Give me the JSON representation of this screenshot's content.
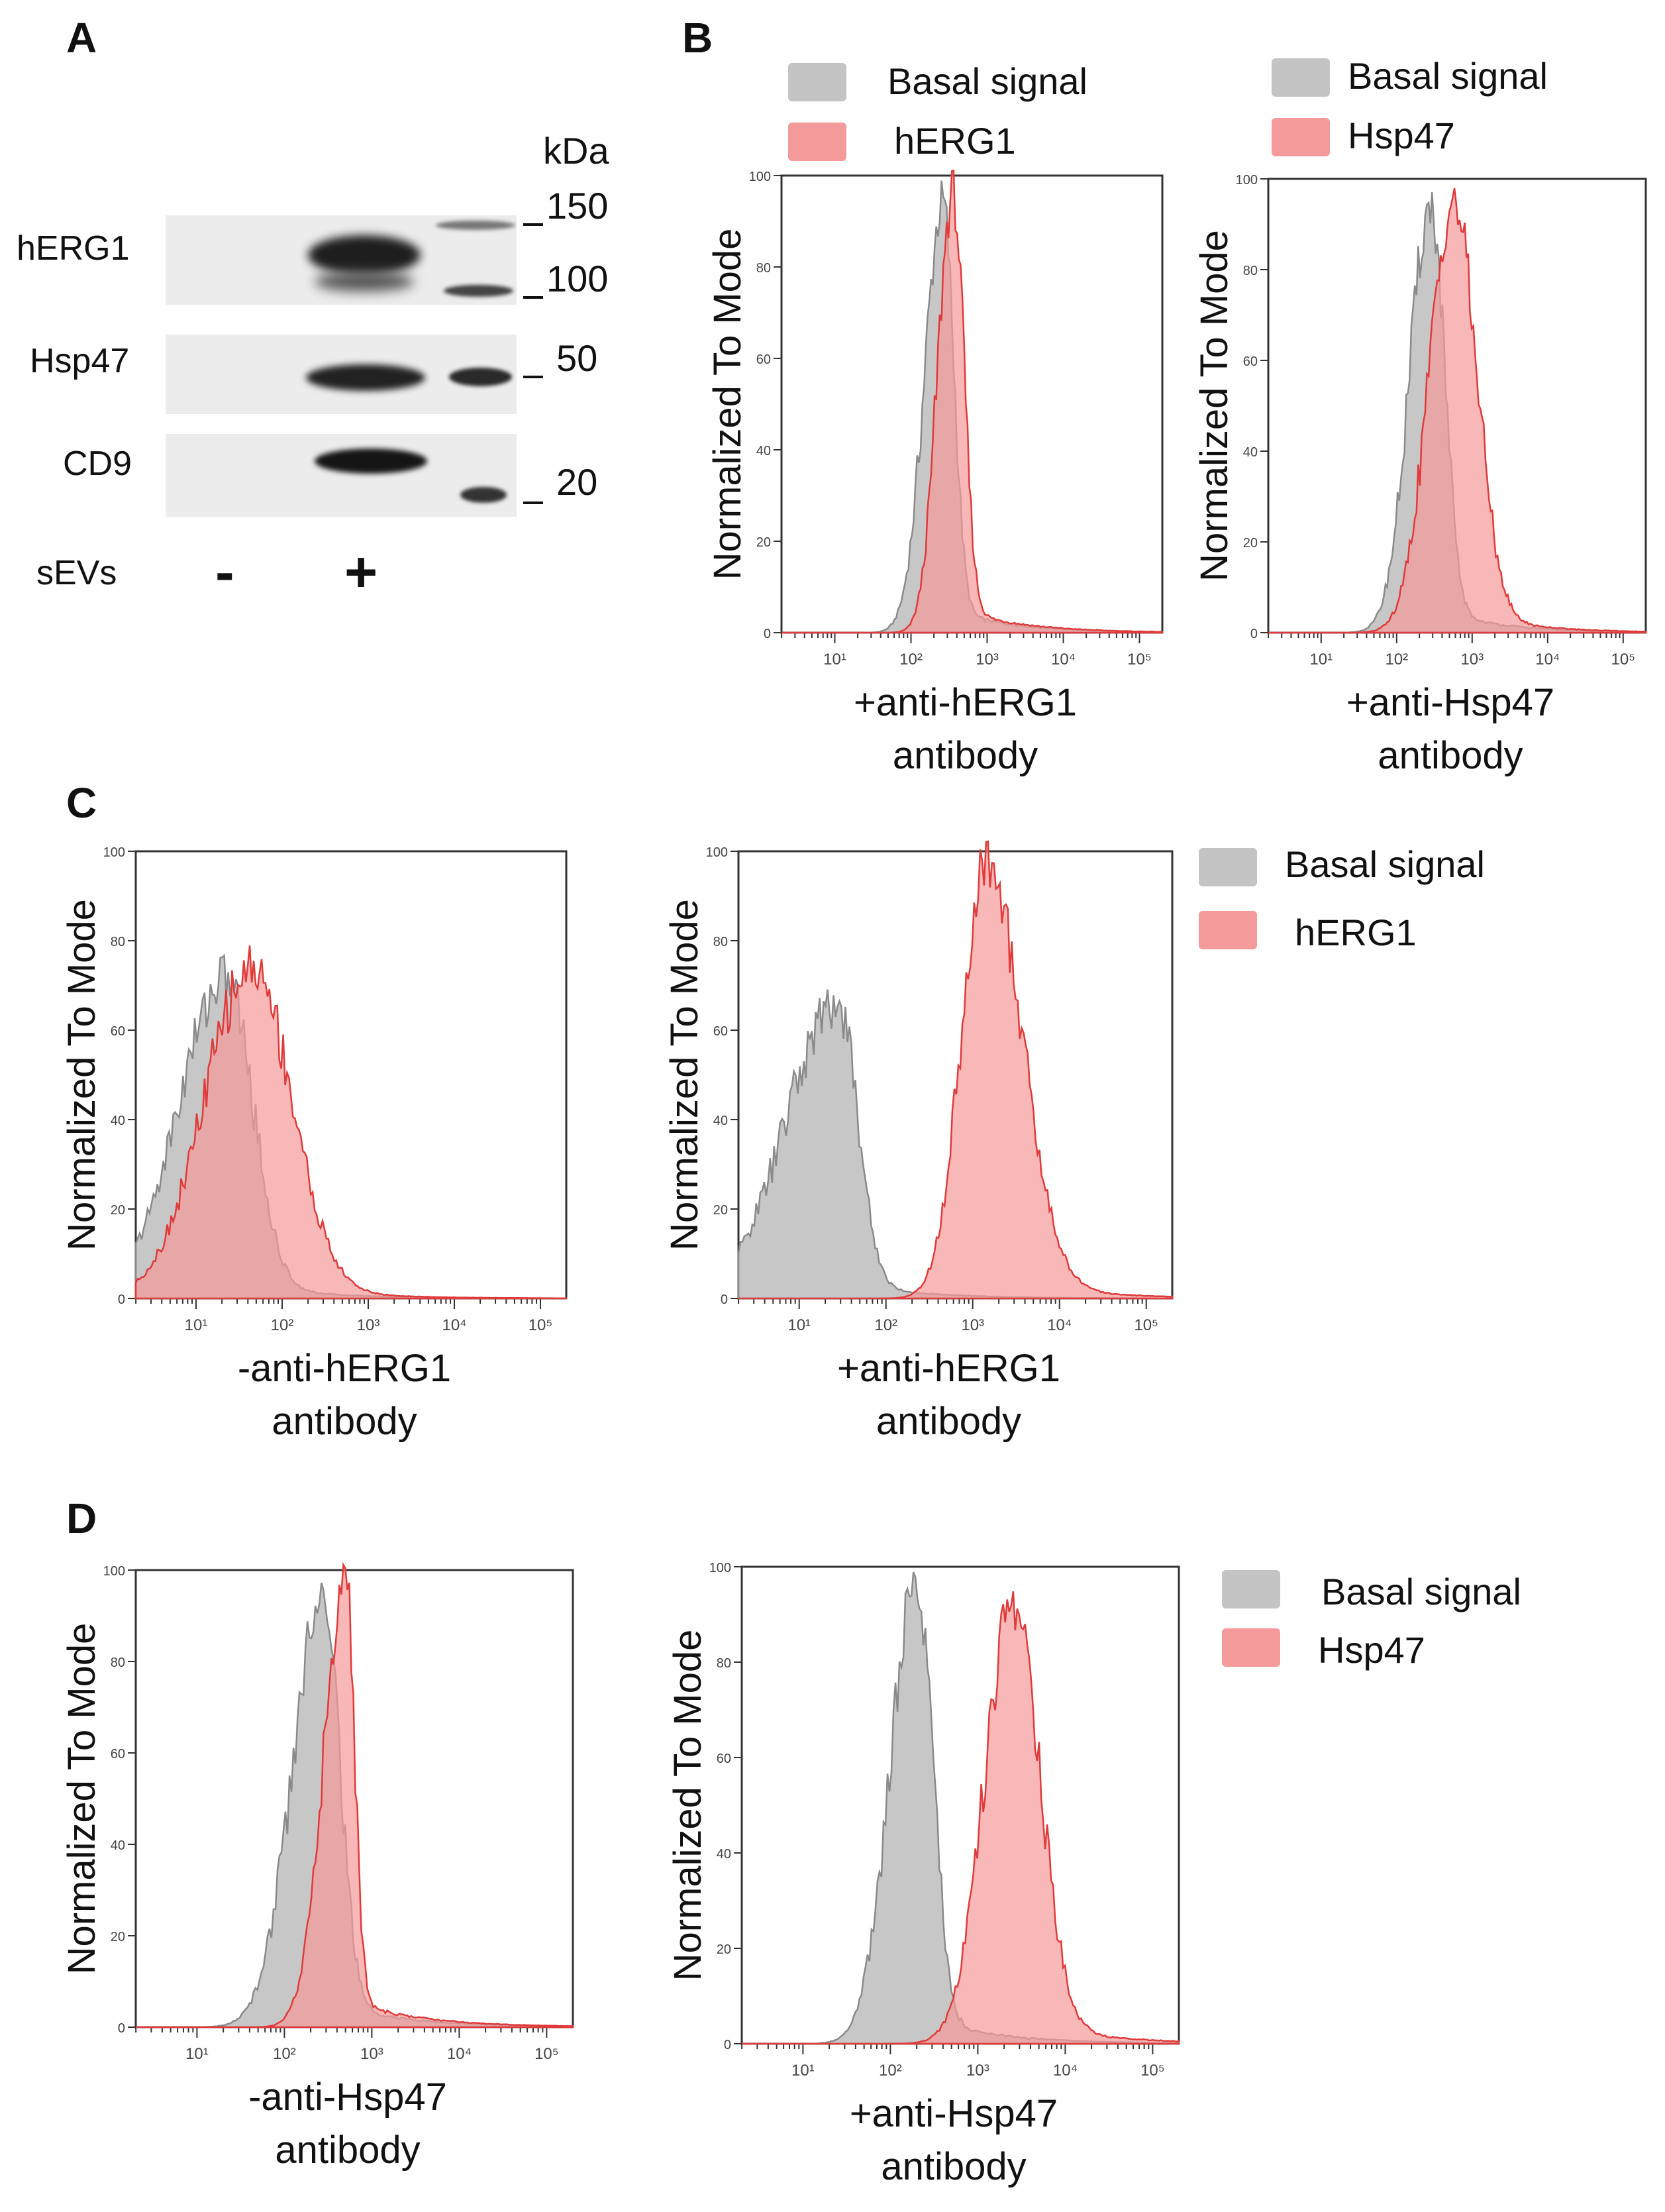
{
  "panel_labels": {
    "A": "A",
    "B": "B",
    "C": "C",
    "D": "D"
  },
  "western_blot": {
    "unit": "kDa",
    "rows": [
      "hERG1",
      "Hsp47",
      "CD9"
    ],
    "markers": [
      "150",
      "100",
      "50",
      "20"
    ],
    "lane_row_label": "sEVs",
    "lanes": [
      "-",
      "+"
    ]
  },
  "legends": {
    "b_left": {
      "basal": "Basal signal",
      "target": "hERG1"
    },
    "b_right": {
      "basal": "Basal signal",
      "target": "Hsp47"
    },
    "c": {
      "basal": "Basal signal",
      "target": "hERG1"
    },
    "d": {
      "basal": "Basal signal",
      "target": "Hsp47"
    }
  },
  "colors": {
    "basal_fill": "#bdbdbd",
    "basal_line": "#8a8a8a",
    "target_fill": "#f59a9a",
    "target_line": "#e03a3a",
    "axis": "#333333"
  },
  "chart_data": [
    {
      "id": "B1",
      "type": "area",
      "ylabel": "Normalized To Mode",
      "xlabel": [
        "+anti-hERG1",
        "antibody"
      ],
      "xscale": "log",
      "xlim_log10": [
        0.3,
        5.3
      ],
      "ylim": [
        0,
        100
      ],
      "yticks": [
        "0",
        "20",
        "40",
        "60",
        "80",
        "100"
      ],
      "xticks": [
        "10¹",
        "10²",
        "10³",
        "10⁴",
        "10⁵"
      ],
      "series": [
        {
          "name": "Basal signal",
          "peak_log10": 2.42,
          "peak": 94,
          "left_width": 0.24,
          "right_width": 0.14
        },
        {
          "name": "hERG1",
          "peak_log10": 2.55,
          "peak": 96,
          "left_width": 0.2,
          "right_width": 0.14
        }
      ]
    },
    {
      "id": "B2",
      "type": "area",
      "ylabel": "Normalized To Mode",
      "xlabel": [
        "+anti-Hsp47",
        "antibody"
      ],
      "xscale": "log",
      "xlim_log10": [
        0.3,
        5.3
      ],
      "ylim": [
        0,
        100
      ],
      "yticks": [
        "0",
        "20",
        "40",
        "60",
        "80",
        "100"
      ],
      "xticks": [
        "10¹",
        "10²",
        "10³",
        "10⁴",
        "10⁵"
      ],
      "series": [
        {
          "name": "Basal signal",
          "peak_log10": 2.45,
          "peak": 94,
          "left_width": 0.28,
          "right_width": 0.18
        },
        {
          "name": "Hsp47",
          "peak_log10": 2.75,
          "peak": 95,
          "left_width": 0.32,
          "right_width": 0.3
        }
      ]
    },
    {
      "id": "C1",
      "type": "area",
      "ylabel": "Normalized To Mode",
      "xlabel": [
        "-anti-hERG1",
        "antibody"
      ],
      "xscale": "log",
      "xlim_log10": [
        0.3,
        5.3
      ],
      "ylim": [
        0,
        100
      ],
      "yticks": [
        "0",
        "20",
        "40",
        "60",
        "80",
        "100"
      ],
      "xticks": [
        "10¹",
        "10²",
        "10³",
        "10⁴",
        "10⁵"
      ],
      "series": [
        {
          "name": "Basal signal",
          "peak_log10": 1.35,
          "peak": 72,
          "left_width": 0.55,
          "right_width": 0.3
        },
        {
          "name": "hERG1",
          "peak_log10": 1.65,
          "peak": 74,
          "left_width": 0.55,
          "right_width": 0.45
        }
      ]
    },
    {
      "id": "C2",
      "type": "area",
      "ylabel": "Normalized To Mode",
      "xlabel": [
        "+anti-hERG1",
        "antibody"
      ],
      "xscale": "log",
      "xlim_log10": [
        0.3,
        5.3
      ],
      "ylim": [
        0,
        100
      ],
      "yticks": [
        "0",
        "20",
        "40",
        "60",
        "80",
        "100"
      ],
      "xticks": [
        "10¹",
        "10²",
        "10³",
        "10⁴",
        "10⁵"
      ],
      "series": [
        {
          "name": "Basal signal",
          "peak_log10": 1.45,
          "peak": 66,
          "left_width": 0.6,
          "right_width": 0.22
        },
        {
          "name": "hERG1",
          "peak_log10": 3.15,
          "peak": 98,
          "left_width": 0.28,
          "right_width": 0.4
        }
      ]
    },
    {
      "id": "D1",
      "type": "area",
      "ylabel": "Normalized To Mode",
      "xlabel": [
        "-anti-Hsp47",
        "antibody"
      ],
      "xscale": "log",
      "xlim_log10": [
        0.3,
        5.3
      ],
      "ylim": [
        0,
        100
      ],
      "yticks": [
        "0",
        "20",
        "40",
        "60",
        "80",
        "100"
      ],
      "xticks": [
        "10¹",
        "10²",
        "10³",
        "10⁴",
        "10⁵"
      ],
      "series": [
        {
          "name": "Basal signal",
          "peak_log10": 2.45,
          "peak": 96,
          "left_width": 0.35,
          "right_width": 0.18
        },
        {
          "name": "Hsp47",
          "peak_log10": 2.7,
          "peak": 99,
          "left_width": 0.25,
          "right_width": 0.1
        }
      ]
    },
    {
      "id": "D2",
      "type": "area",
      "ylabel": "Normalized To Mode",
      "xlabel": [
        "+anti-Hsp47",
        "antibody"
      ],
      "xscale": "log",
      "xlim_log10": [
        0.3,
        5.3
      ],
      "ylim": [
        0,
        100
      ],
      "yticks": [
        "0",
        "20",
        "40",
        "60",
        "80",
        "100"
      ],
      "xticks": [
        "10¹",
        "10²",
        "10³",
        "10⁴",
        "10⁵"
      ],
      "series": [
        {
          "name": "Basal signal",
          "peak_log10": 2.3,
          "peak": 97,
          "left_width": 0.3,
          "right_width": 0.18
        },
        {
          "name": "Hsp47",
          "peak_log10": 3.4,
          "peak": 92,
          "left_width": 0.32,
          "right_width": 0.3
        }
      ]
    }
  ]
}
